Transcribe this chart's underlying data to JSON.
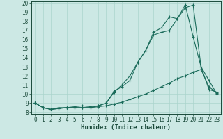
{
  "xlabel": "Humidex (Indice chaleur)",
  "bg_color": "#cce8e4",
  "grid_color": "#aad4cc",
  "line_color": "#1a6b5a",
  "spine_color": "#1a4a3a",
  "xlim": [
    -0.5,
    23.5
  ],
  "ylim": [
    7.8,
    20.2
  ],
  "xticks": [
    0,
    1,
    2,
    3,
    4,
    5,
    6,
    7,
    8,
    9,
    10,
    11,
    12,
    13,
    14,
    15,
    16,
    17,
    18,
    19,
    20,
    21,
    22,
    23
  ],
  "yticks": [
    8,
    9,
    10,
    11,
    12,
    13,
    14,
    15,
    16,
    17,
    18,
    19,
    20
  ],
  "line1_x": [
    0,
    1,
    2,
    3,
    4,
    5,
    6,
    7,
    8,
    9,
    10,
    11,
    12,
    13,
    14,
    15,
    16,
    17,
    18,
    19,
    20,
    21,
    22,
    23
  ],
  "line1_y": [
    9.0,
    8.5,
    8.3,
    8.4,
    8.5,
    8.5,
    8.5,
    8.5,
    8.7,
    9.0,
    10.3,
    10.8,
    11.5,
    13.5,
    14.8,
    16.5,
    16.8,
    17.0,
    18.3,
    19.8,
    16.3,
    13.0,
    11.5,
    10.0
  ],
  "line2_x": [
    0,
    1,
    2,
    3,
    4,
    5,
    6,
    7,
    8,
    9,
    10,
    11,
    12,
    13,
    14,
    15,
    16,
    17,
    18,
    19,
    20,
    21,
    22,
    23
  ],
  "line2_y": [
    9.0,
    8.5,
    8.3,
    8.4,
    8.5,
    8.6,
    8.7,
    8.6,
    8.7,
    9.0,
    10.2,
    11.0,
    12.0,
    13.5,
    14.8,
    16.8,
    17.3,
    18.5,
    18.3,
    19.5,
    19.8,
    13.0,
    10.5,
    10.2
  ],
  "line3_x": [
    0,
    1,
    2,
    3,
    4,
    5,
    6,
    7,
    8,
    9,
    10,
    11,
    12,
    13,
    14,
    15,
    16,
    17,
    18,
    19,
    20,
    21,
    22,
    23
  ],
  "line3_y": [
    9.0,
    8.5,
    8.3,
    8.5,
    8.5,
    8.5,
    8.5,
    8.5,
    8.6,
    8.7,
    8.9,
    9.1,
    9.4,
    9.7,
    10.0,
    10.4,
    10.8,
    11.2,
    11.7,
    12.0,
    12.4,
    12.7,
    10.8,
    10.1
  ],
  "marker": "+",
  "markersize": 3,
  "markeredgewidth": 0.8,
  "linewidth": 0.8,
  "font_color": "#1a4a3a",
  "tick_fontsize": 5.5,
  "label_fontsize": 6.5
}
